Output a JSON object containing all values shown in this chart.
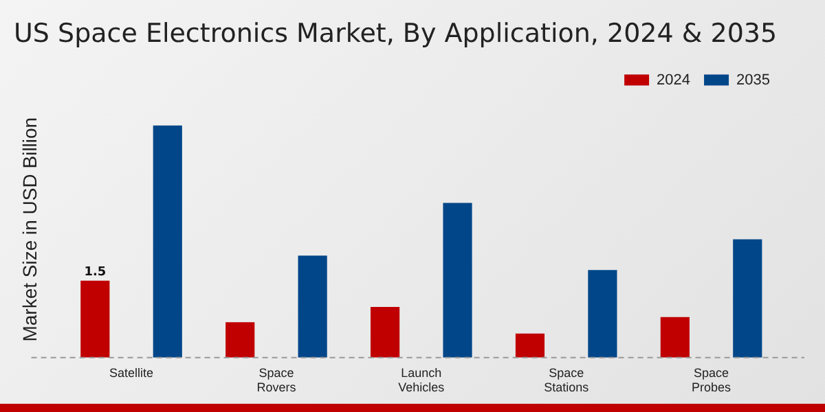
{
  "chart_data": {
    "type": "bar",
    "title": "US Space Electronics Market, By Application, 2024 & 2035",
    "ylabel": "Market Size in USD Billion",
    "categories": [
      "Satellite",
      "Space Rovers",
      "Launch Vehicles",
      "Space Stations",
      "Space Probes"
    ],
    "series": [
      {
        "name": "2024",
        "color": "#c00000",
        "values": [
          1.5,
          0.69,
          0.99,
          0.47,
          0.79
        ],
        "value_labels": [
          "1.5",
          null,
          null,
          null,
          null
        ]
      },
      {
        "name": "2035",
        "color": "#004689",
        "values": [
          4.53,
          1.99,
          3.02,
          1.71,
          2.31
        ]
      }
    ],
    "legend": "top right",
    "grid": false
  }
}
